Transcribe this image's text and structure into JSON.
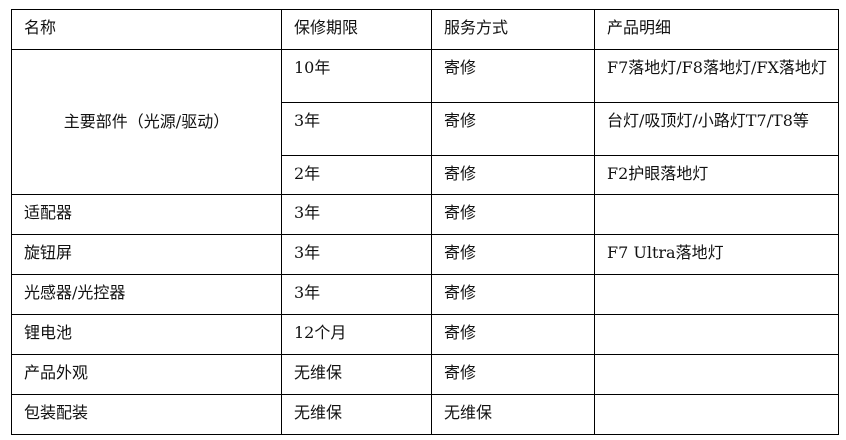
{
  "table": {
    "headers": [
      "名称",
      "保修期限",
      "服务方式",
      "产品明细"
    ],
    "main_parts": {
      "name": "主要部件（光源/驱动）",
      "rows": [
        {
          "period": "10年",
          "service": "寄修",
          "detail": "F7落地灯/F8落地灯/FX落地灯"
        },
        {
          "period": "3年",
          "service": "寄修",
          "detail": "台灯/吸顶灯/小路灯T7/T8等"
        },
        {
          "period": "2年",
          "service": "寄修",
          "detail": "F2护眼落地灯"
        }
      ]
    },
    "rows": [
      {
        "name": "适配器",
        "period": "3年",
        "service": "寄修",
        "detail": ""
      },
      {
        "name": "旋钮屏",
        "period": "3年",
        "service": "寄修",
        "detail": "F7 Ultra落地灯"
      },
      {
        "name": "光感器/光控器",
        "period": "3年",
        "service": "寄修",
        "detail": ""
      },
      {
        "name": "锂电池",
        "period": "12个月",
        "service": "寄修",
        "detail": ""
      },
      {
        "name": "产品外观",
        "period": "无维保",
        "service": "寄修",
        "detail": ""
      },
      {
        "name": "包装配装",
        "period": "无维保",
        "service": "无维保",
        "detail": ""
      }
    ]
  }
}
